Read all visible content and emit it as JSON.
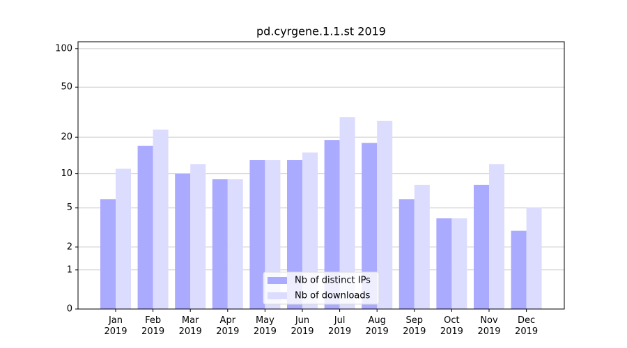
{
  "chart_data": {
    "type": "bar",
    "title": "pd.cyrgene.1.1.st 2019",
    "categories": [
      "Jan 2019",
      "Feb 2019",
      "Mar 2019",
      "Apr 2019",
      "May 2019",
      "Jun 2019",
      "Jul 2019",
      "Aug 2019",
      "Sep 2019",
      "Oct 2019",
      "Nov 2019",
      "Dec 2019"
    ],
    "series": [
      {
        "name": "Nb of distinct IPs",
        "color": "#aaaaff",
        "values": [
          6,
          17,
          10,
          9,
          13,
          13,
          19,
          18,
          6,
          4,
          8,
          3
        ]
      },
      {
        "name": "Nb of downloads",
        "color": "#dcdcff",
        "values": [
          11,
          23,
          12,
          9,
          13,
          15,
          29,
          27,
          8,
          4,
          12,
          5
        ]
      }
    ],
    "yscale": "log1p",
    "ylim": [
      0,
      113
    ],
    "yticks": [
      0,
      1,
      2,
      5,
      10,
      20,
      50,
      100
    ],
    "grid": true,
    "legend": "lower center"
  }
}
